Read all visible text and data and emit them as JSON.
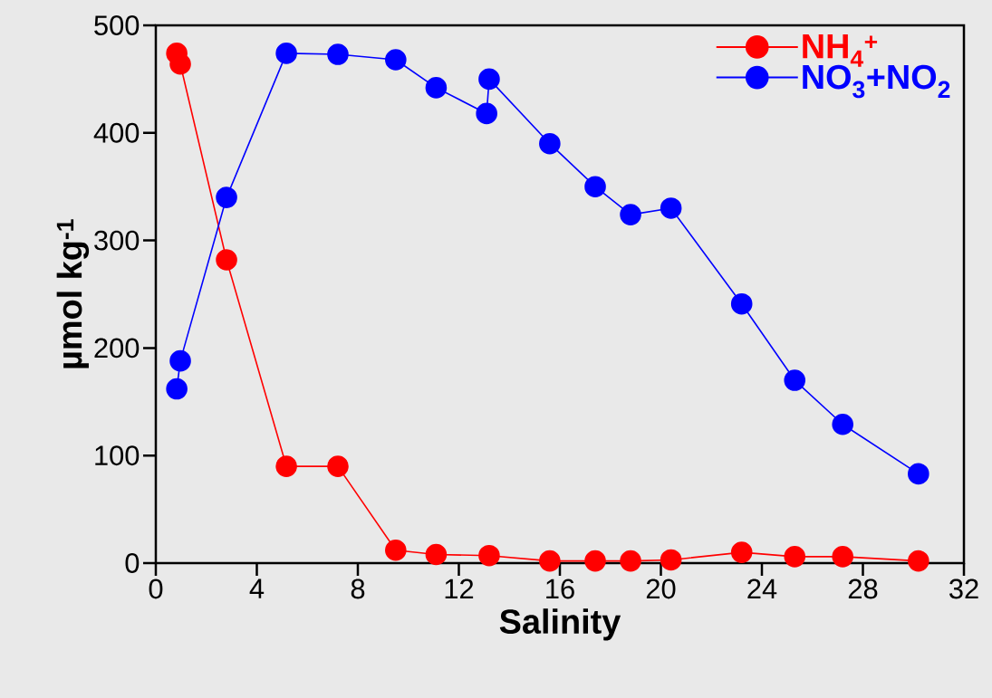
{
  "chart_data": {
    "type": "line",
    "xlabel": "Salinity",
    "ylabel": "µmol kg$^{-1}$",
    "xlim": [
      0,
      32
    ],
    "xticks": [
      0,
      4,
      8,
      12,
      16,
      20,
      24,
      28,
      32
    ],
    "ylim": [
      0,
      500
    ],
    "yticks": [
      0,
      100,
      200,
      300,
      400,
      500
    ],
    "marker": "circle",
    "line_style": "solid",
    "legend": "top right",
    "grid": false,
    "series": [
      {
        "name": "NH$_{4}$$^{+}$",
        "color": "#ff0000",
        "x": [
          0.83,
          0.97,
          2.8,
          5.17,
          7.21,
          9.5,
          11.1,
          13.2,
          15.6,
          17.4,
          18.8,
          20.4,
          23.2,
          25.3,
          27.2,
          30.2
        ],
        "values": [
          474,
          464,
          282,
          90,
          90,
          12,
          8,
          7,
          2,
          2,
          2,
          3,
          10,
          6,
          6,
          2
        ]
      },
      {
        "name": "NO$_{3}$+NO$_{2}$",
        "color": "#0000ff",
        "x": [
          0.83,
          0.97,
          2.8,
          5.17,
          7.21,
          9.5,
          11.1,
          13.1,
          13.2,
          15.6,
          17.4,
          18.8,
          20.4,
          23.2,
          25.3,
          27.2,
          30.2
        ],
        "values": [
          162,
          188,
          340,
          474,
          473,
          468,
          442,
          418,
          450,
          390,
          350,
          324,
          330,
          241,
          170,
          129,
          83
        ]
      }
    ]
  }
}
